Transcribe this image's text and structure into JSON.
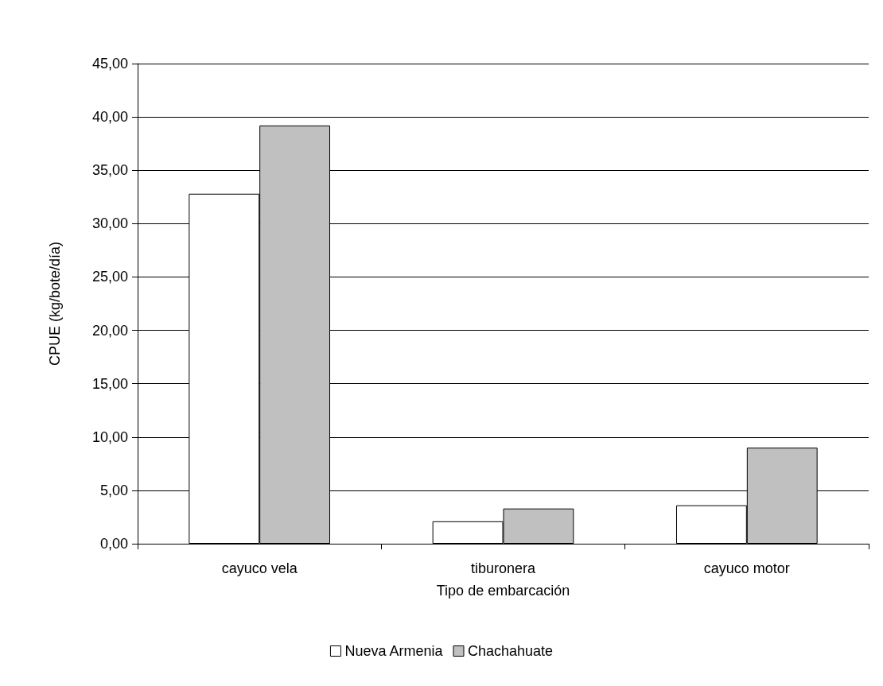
{
  "chart_data": {
    "type": "bar",
    "xlabel": "Tipo de embarcación",
    "ylabel": "CPUE (kg/bote/día)",
    "categories": [
      "cayuco vela",
      "tiburonera",
      "cayuco motor"
    ],
    "series": [
      {
        "name": "Nueva Armenia",
        "color": "#ffffff",
        "values": [
          32.8,
          2.1,
          3.6
        ]
      },
      {
        "name": "Chachahuate",
        "color": "#c0c0c0",
        "values": [
          39.2,
          3.3,
          9.0
        ]
      }
    ],
    "ylim": [
      0,
      45
    ],
    "yticks": [
      {
        "value": 0,
        "label": "0,00"
      },
      {
        "value": 5,
        "label": "5,00"
      },
      {
        "value": 10,
        "label": "10,00"
      },
      {
        "value": 15,
        "label": "15,00"
      },
      {
        "value": 20,
        "label": "20,00"
      },
      {
        "value": 25,
        "label": "25,00"
      },
      {
        "value": 30,
        "label": "30,00"
      },
      {
        "value": 35,
        "label": "35,00"
      },
      {
        "value": 40,
        "label": "40,00"
      },
      {
        "value": 45,
        "label": "45,00"
      }
    ],
    "grid": "y",
    "legend": "bottom"
  }
}
